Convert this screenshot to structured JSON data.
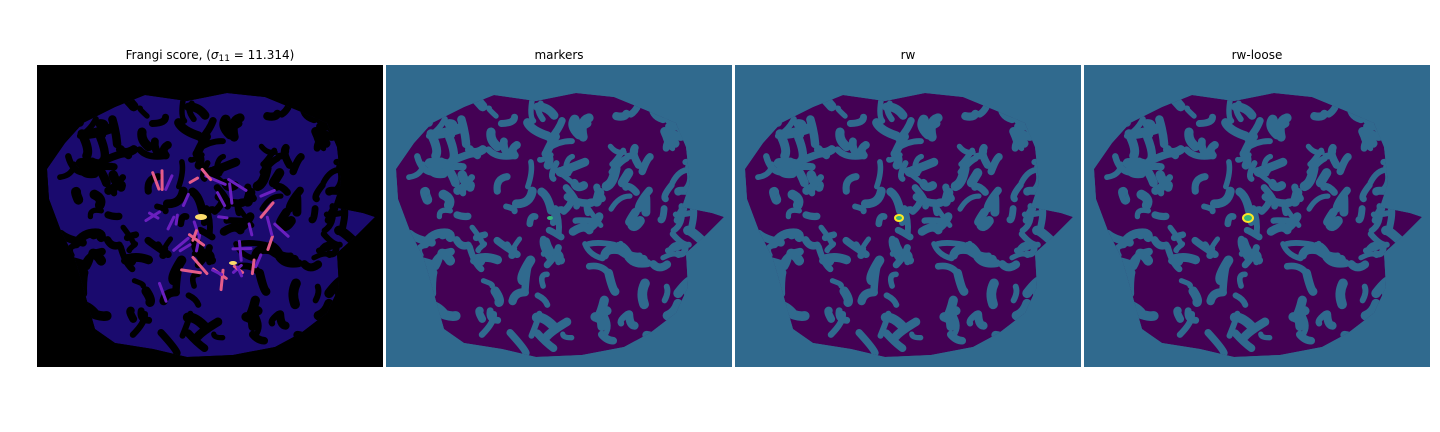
{
  "panels": [
    {
      "id": "frangi",
      "title_prefix": "Frangi score, (",
      "title_sigma": "σ",
      "title_sub": "11",
      "title_suffix": " = 11.314)",
      "cmap": "magma",
      "background": "#000000"
    },
    {
      "id": "markers",
      "title": "markers",
      "background": "#306a8e",
      "blob_color": "#440154",
      "marker_color": "#35b779",
      "marker_rx": 3,
      "marker_ry": 2
    },
    {
      "id": "rw",
      "title": "rw",
      "background": "#306a8e",
      "blob_color": "#440154",
      "marker_color": "#fde725",
      "marker_inner": "#35b779",
      "marker_rx": 5,
      "marker_ry": 4
    },
    {
      "id": "rw-loose",
      "title": "rw-loose",
      "background": "#306a8e",
      "blob_color": "#440154",
      "marker_color": "#fde725",
      "marker_inner": "#35b779",
      "marker_rx": 6,
      "marker_ry": 5
    }
  ],
  "colors": {
    "frangi_low": "#1a0a6e",
    "frangi_mid": "#6a1fbf",
    "frangi_high": "#e55c8a",
    "frangi_peak": "#fcdc6b"
  }
}
